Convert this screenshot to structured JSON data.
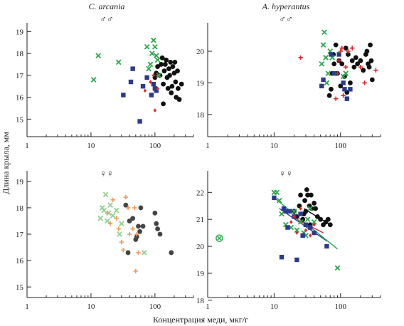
{
  "figure": {
    "ylabel": "Длина крыла, мм",
    "xlabel": "Концентрация меди, мкг/г"
  },
  "panels_text": [
    {
      "title": "C. arcania",
      "sex": "♂♂"
    },
    {
      "title": "A. hyperantus",
      "sex": "♂♂"
    },
    {
      "title": "",
      "sex": "♀♀"
    },
    {
      "title": "",
      "sex": "♀♀"
    }
  ],
  "colors": {
    "black": "#111111",
    "green": "#2aa84a",
    "blue": "#2b3a8f",
    "red": "#e0262b",
    "gray": "#444444",
    "lightgreen": "#8fd18f",
    "orange": "#f39a5c"
  },
  "chart_data": [
    {
      "type": "scatter",
      "panel": "C. arcania ♂♂",
      "title": "C. arcania",
      "xscale": "log",
      "xlim": [
        1,
        400
      ],
      "ylim": [
        14.2,
        19.4
      ],
      "xticks": [
        1,
        10,
        100
      ],
      "yticks": [
        15,
        16,
        17,
        18,
        19
      ],
      "series": [
        {
          "marker": "circle",
          "color": "#111111",
          "points": [
            [
              100,
              16.9
            ],
            [
              105,
              17.1
            ],
            [
              110,
              17.4
            ],
            [
              120,
              17.0
            ],
            [
              125,
              17.5
            ],
            [
              130,
              17.8
            ],
            [
              135,
              16.6
            ],
            [
              140,
              17.2
            ],
            [
              145,
              17.5
            ],
            [
              150,
              17.7
            ],
            [
              155,
              16.9
            ],
            [
              160,
              16.4
            ],
            [
              165,
              17.3
            ],
            [
              170,
              17.0
            ],
            [
              175,
              17.6
            ],
            [
              180,
              16.2
            ],
            [
              185,
              16.5
            ],
            [
              190,
              17.4
            ],
            [
              200,
              17.1
            ],
            [
              205,
              17.6
            ],
            [
              210,
              16.7
            ],
            [
              215,
              16.0
            ],
            [
              225,
              17.2
            ],
            [
              230,
              16.4
            ],
            [
              240,
              15.9
            ],
            [
              260,
              16.6
            ],
            [
              135,
              15.7
            ]
          ]
        },
        {
          "marker": "x",
          "color": "#2aa84a",
          "points": [
            [
              11,
              16.8
            ],
            [
              13,
              17.9
            ],
            [
              27,
              17.6
            ],
            [
              75,
              18.3
            ],
            [
              80,
              17.3
            ],
            [
              85,
              17.5
            ],
            [
              90,
              18.0
            ],
            [
              95,
              18.6
            ],
            [
              100,
              18.3
            ],
            [
              105,
              17.9
            ],
            [
              110,
              17.7
            ],
            [
              115,
              17.0
            ]
          ]
        },
        {
          "marker": "square",
          "color": "#2b3a8f",
          "points": [
            [
              32,
              16.1
            ],
            [
              42,
              16.7
            ],
            [
              45,
              17.3
            ],
            [
              58,
              14.9
            ],
            [
              65,
              16.5
            ],
            [
              75,
              16.9
            ],
            [
              88,
              16.1
            ],
            [
              95,
              16.6
            ],
            [
              100,
              16.4
            ],
            [
              105,
              16.3
            ]
          ]
        },
        {
          "marker": "diamond",
          "color": "#e0262b",
          "points": [
            [
              70,
              16.3
            ],
            [
              85,
              16.7
            ],
            [
              95,
              17.0
            ],
            [
              100,
              15.4
            ],
            [
              110,
              16.4
            ]
          ]
        }
      ]
    },
    {
      "type": "scatter",
      "panel": "A. hyperantus ♂♂",
      "title": "A. hyperantus",
      "xscale": "log",
      "xlim": [
        1,
        400
      ],
      "ylim": [
        17.3,
        20.9
      ],
      "xticks": [
        1,
        10,
        100
      ],
      "yticks": [
        18,
        19,
        20
      ],
      "series": [
        {
          "marker": "circle",
          "color": "#111111",
          "points": [
            [
              68,
              18.6
            ],
            [
              72,
              18.8
            ],
            [
              75,
              19.3
            ],
            [
              78,
              19.9
            ],
            [
              80,
              19.6
            ],
            [
              85,
              20.2
            ],
            [
              90,
              19.3
            ],
            [
              95,
              19.7
            ],
            [
              100,
              18.9
            ],
            [
              105,
              19.6
            ],
            [
              115,
              19.2
            ],
            [
              120,
              20.1
            ],
            [
              130,
              19.9
            ],
            [
              140,
              19.0
            ],
            [
              150,
              19.7
            ],
            [
              160,
              19.5
            ],
            [
              170,
              19.8
            ],
            [
              180,
              19.6
            ],
            [
              200,
              19.7
            ],
            [
              220,
              19.4
            ],
            [
              240,
              19.9
            ],
            [
              250,
              20.0
            ],
            [
              260,
              19.6
            ],
            [
              280,
              20.2
            ],
            [
              290,
              19.7
            ],
            [
              300,
              19.1
            ],
            [
              270,
              19.5
            ],
            [
              125,
              18.7
            ]
          ]
        },
        {
          "marker": "x",
          "color": "#2aa84a",
          "points": [
            [
              52,
              19.6
            ],
            [
              55,
              20.2
            ],
            [
              57,
              20.6
            ],
            [
              60,
              19.8
            ],
            [
              62,
              19.0
            ],
            [
              65,
              19.3
            ],
            [
              70,
              20.0
            ],
            [
              75,
              19.8
            ],
            [
              110,
              19.2
            ],
            [
              120,
              19.3
            ]
          ]
        },
        {
          "marker": "square",
          "color": "#2b3a8f",
          "points": [
            [
              52,
              18.9
            ],
            [
              55,
              19.1
            ],
            [
              72,
              19.9
            ],
            [
              80,
              19.3
            ],
            [
              95,
              19.9
            ],
            [
              110,
              19.0
            ],
            [
              115,
              18.8
            ],
            [
              125,
              18.5
            ],
            [
              140,
              18.8
            ]
          ]
        },
        {
          "marker": "plus",
          "color": "#e0262b",
          "points": [
            [
              25,
              19.8
            ],
            [
              85,
              18.5
            ],
            [
              90,
              19.3
            ],
            [
              95,
              19.7
            ],
            [
              100,
              20.0
            ],
            [
              105,
              20.1
            ],
            [
              110,
              18.6
            ],
            [
              120,
              19.5
            ],
            [
              130,
              20.0
            ],
            [
              150,
              20.1
            ],
            [
              200,
              19.5
            ],
            [
              230,
              19.0
            ],
            [
              340,
              19.4
            ]
          ]
        }
      ]
    },
    {
      "type": "scatter",
      "panel": "C. arcania ♀♀",
      "xscale": "log",
      "xlim": [
        1,
        400
      ],
      "ylim": [
        14.6,
        19.4
      ],
      "xticks": [
        1,
        10,
        100
      ],
      "yticks": [
        15,
        16,
        17,
        18,
        19
      ],
      "series": [
        {
          "marker": "circle",
          "color": "#444444",
          "points": [
            [
              35,
              18.1
            ],
            [
              38,
              16.3
            ],
            [
              40,
              17.5
            ],
            [
              45,
              17.6
            ],
            [
              50,
              16.8
            ],
            [
              52,
              16.9
            ],
            [
              55,
              17.3
            ],
            [
              58,
              17.1
            ],
            [
              60,
              18.0
            ],
            [
              65,
              17.3
            ],
            [
              100,
              17.8
            ],
            [
              105,
              17.4
            ],
            [
              110,
              17.2
            ],
            [
              120,
              17.0
            ],
            [
              180,
              16.3
            ]
          ]
        },
        {
          "marker": "x",
          "color": "#8fd18f",
          "points": [
            [
              14,
              17.6
            ],
            [
              15,
              18.0
            ],
            [
              16,
              17.9
            ],
            [
              17,
              18.5
            ],
            [
              18,
              17.5
            ],
            [
              19,
              17.8
            ],
            [
              20,
              18.1
            ],
            [
              22,
              17.7
            ],
            [
              25,
              17.9
            ],
            [
              28,
              17.0
            ],
            [
              30,
              17.4
            ],
            [
              68,
              16.3
            ]
          ]
        },
        {
          "marker": "plus",
          "color": "#f39a5c",
          "points": [
            [
              18,
              17.8
            ],
            [
              20,
              17.4
            ],
            [
              22,
              18.3
            ],
            [
              25,
              17.6
            ],
            [
              27,
              17.2
            ],
            [
              30,
              16.7
            ],
            [
              32,
              16.4
            ],
            [
              35,
              18.4
            ],
            [
              38,
              18.0
            ],
            [
              40,
              17.0
            ],
            [
              45,
              17.2
            ],
            [
              48,
              18.0
            ],
            [
              50,
              15.6
            ],
            [
              52,
              17.0
            ],
            [
              55,
              16.3
            ]
          ]
        }
      ]
    },
    {
      "type": "scatter",
      "panel": "A. hyperantus ♀♀",
      "xscale": "log",
      "xlim": [
        1,
        400
      ],
      "ylim": [
        18.1,
        22.8
      ],
      "xticks": [
        1,
        10,
        100
      ],
      "yticks": [
        18,
        19,
        20,
        21,
        22
      ],
      "series": [
        {
          "marker": "circle",
          "color": "#111111",
          "points": [
            [
              20,
              21.3
            ],
            [
              22,
              21.1
            ],
            [
              24,
              21.5
            ],
            [
              25,
              21.9
            ],
            [
              27,
              21.0
            ],
            [
              28,
              21.2
            ],
            [
              29,
              21.7
            ],
            [
              30,
              21.3
            ],
            [
              31,
              22.1
            ],
            [
              32,
              21.9
            ],
            [
              34,
              21.5
            ],
            [
              35,
              20.8
            ],
            [
              36,
              21.9
            ],
            [
              37,
              21.4
            ],
            [
              40,
              21.6
            ],
            [
              42,
              21.4
            ],
            [
              45,
              21.1
            ],
            [
              50,
              21.0
            ],
            [
              55,
              20.8
            ],
            [
              60,
              20.9
            ],
            [
              65,
              21.0
            ],
            [
              70,
              20.8
            ]
          ]
        },
        {
          "marker": "x",
          "color": "#2aa84a",
          "points": [
            [
              10,
              22.0
            ],
            [
              11,
              22.0
            ],
            [
              12,
              21.7
            ],
            [
              13,
              21.2
            ],
            [
              15,
              20.8
            ],
            [
              18,
              20.7
            ],
            [
              20,
              21.3
            ],
            [
              22,
              20.6
            ],
            [
              25,
              20.9
            ],
            [
              28,
              20.5
            ],
            [
              30,
              20.4
            ],
            [
              32,
              21.0
            ],
            [
              35,
              21.4
            ],
            [
              40,
              20.9
            ],
            [
              90,
              19.2
            ]
          ]
        },
        {
          "marker": "square",
          "color": "#2b3a8f",
          "points": [
            [
              10,
              21.8
            ],
            [
              13,
              19.6
            ],
            [
              14,
              21.4
            ],
            [
              15,
              21.3
            ],
            [
              16,
              20.7
            ],
            [
              17,
              21.3
            ],
            [
              20,
              21.1
            ],
            [
              22,
              19.5
            ],
            [
              25,
              21.2
            ],
            [
              27,
              20.4
            ],
            [
              30,
              20.8
            ],
            [
              35,
              20.7
            ],
            [
              40,
              20.5
            ],
            [
              62,
              20.0
            ]
          ]
        },
        {
          "marker": "diamond",
          "color": "#e0262b",
          "points": [
            [
              18,
              20.9
            ],
            [
              20,
              21.1
            ],
            [
              22,
              20.5
            ],
            [
              25,
              21.4
            ],
            [
              30,
              20.6
            ],
            [
              35,
              20.4
            ],
            [
              40,
              20.8
            ]
          ]
        },
        {
          "marker": "circle-x",
          "color": "#2aa84a",
          "points": [
            [
              1.5,
              20.3
            ]
          ]
        }
      ],
      "trendlines": [
        {
          "color": "#111111",
          "from": [
            28,
            21.4
          ],
          "to": [
            70,
            20.8
          ]
        },
        {
          "color": "#e0262b",
          "from": [
            22,
            21.0
          ],
          "to": [
            55,
            20.5
          ]
        },
        {
          "color": "#2b3a8f",
          "from": [
            12,
            21.4
          ],
          "to": [
            62,
            20.2
          ]
        },
        {
          "color": "#2aa84a",
          "from": [
            10,
            21.8
          ],
          "to": [
            90,
            19.9
          ]
        }
      ]
    }
  ]
}
